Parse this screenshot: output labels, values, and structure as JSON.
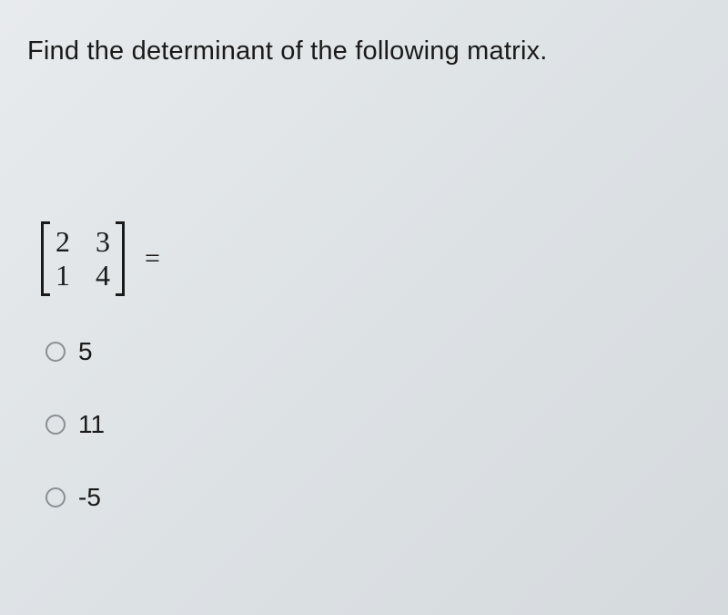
{
  "question": {
    "title": "Find the determinant of the following matrix."
  },
  "matrix": {
    "rows": [
      [
        "2",
        "3"
      ],
      [
        "1",
        "4"
      ]
    ],
    "equals": "="
  },
  "options": [
    {
      "label": "5",
      "selected": false
    },
    {
      "label": "11",
      "selected": false
    },
    {
      "label": "-5",
      "selected": false
    }
  ],
  "styling": {
    "background_color": "#e2e6e9",
    "text_color": "#1a1a1a",
    "radio_border_color": "#8a8f93",
    "title_fontsize": 29,
    "matrix_cell_fontsize": 32,
    "option_fontsize": 28,
    "bracket_thickness": 3
  }
}
